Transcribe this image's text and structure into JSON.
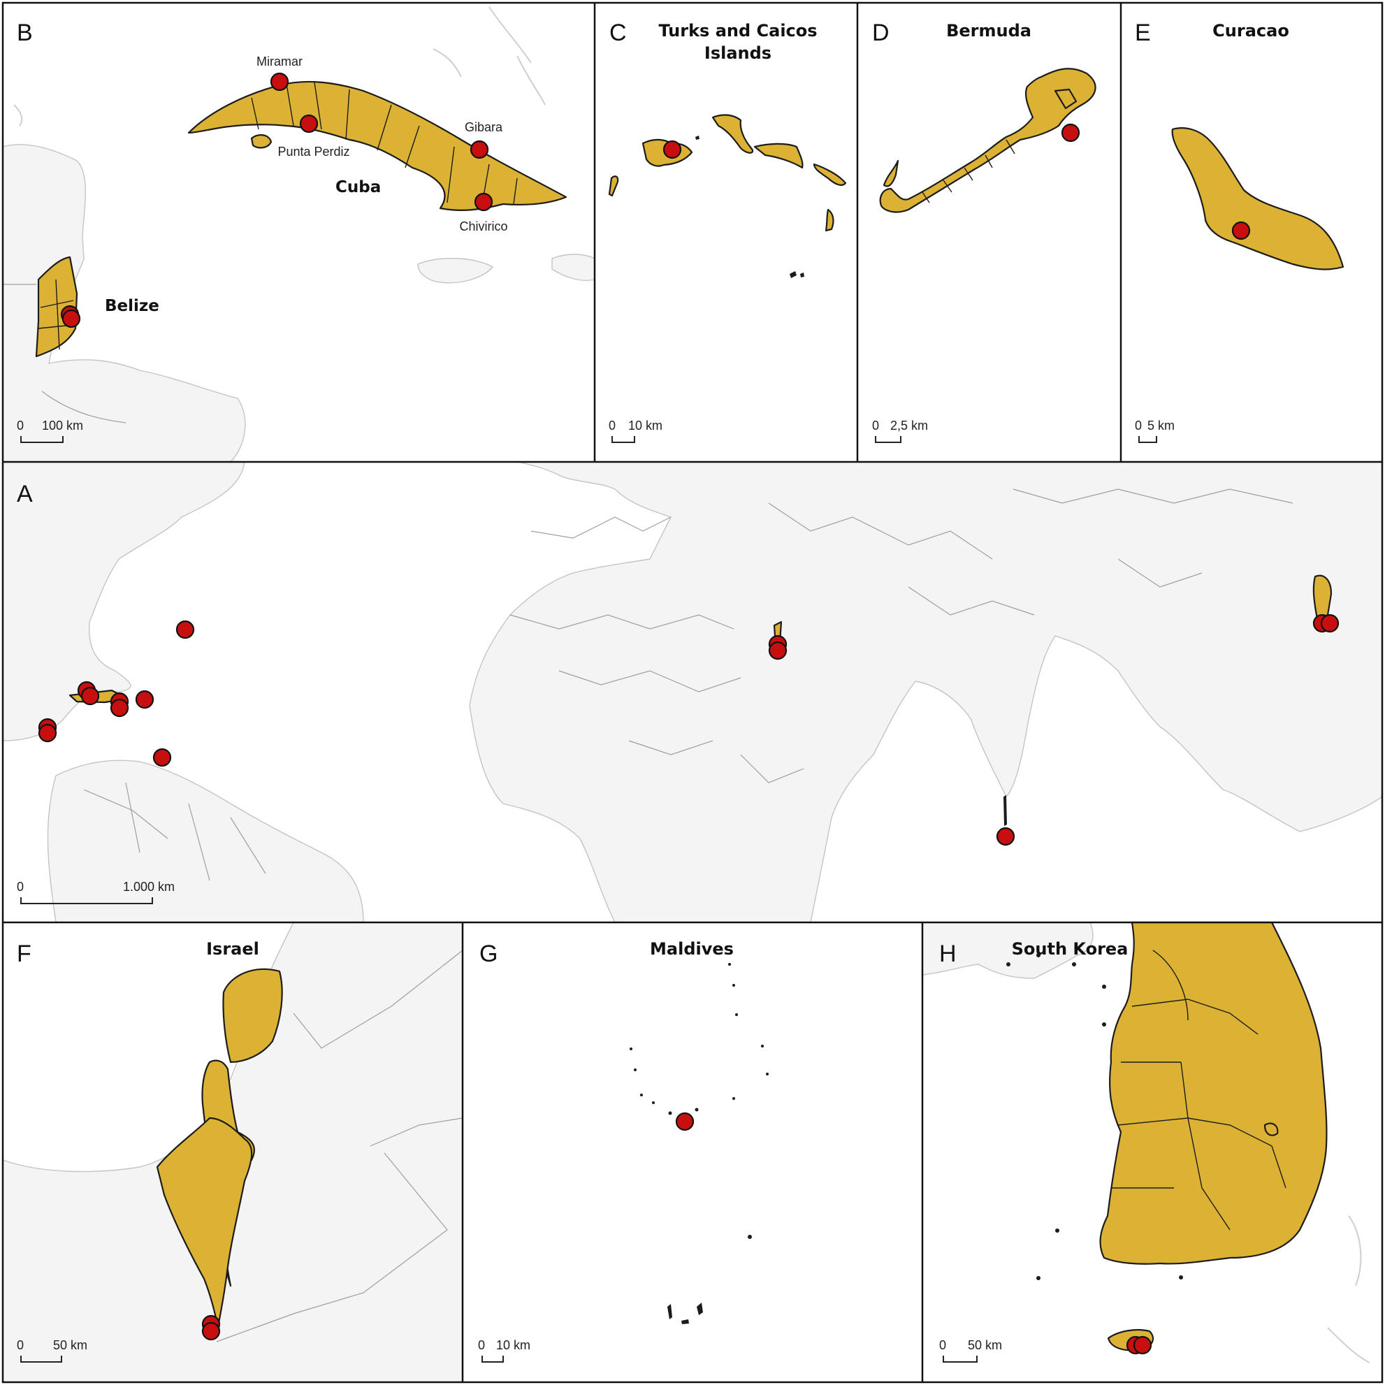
{
  "panels": {
    "A": {
      "letter": "A",
      "scale": {
        "zero": "0",
        "label": "1.000 km"
      }
    },
    "B": {
      "letter": "B",
      "countries": {
        "cuba": "Cuba",
        "belize": "Belize"
      },
      "places": {
        "miramar": "Miramar",
        "punta_perdiz": "Punta Perdiz",
        "gibara": "Gibara",
        "chivirico": "Chivirico"
      },
      "scale": {
        "zero": "0",
        "label": "100 km"
      }
    },
    "C": {
      "letter": "C",
      "title_line1": "Turks and Caicos",
      "title_line2": "Islands",
      "scale": {
        "zero": "0",
        "label": "10 km"
      }
    },
    "D": {
      "letter": "D",
      "title": "Bermuda",
      "scale": {
        "zero": "0",
        "label": "2,5 km"
      }
    },
    "E": {
      "letter": "E",
      "title": "Curacao",
      "scale": {
        "zero": "0",
        "label": "5 km"
      }
    },
    "F": {
      "letter": "F",
      "title": "Israel",
      "scale": {
        "zero": "0",
        "label": "50 km"
      }
    },
    "G": {
      "letter": "G",
      "title": "Maldives",
      "scale": {
        "zero": "0",
        "label": "10 km"
      }
    },
    "H": {
      "letter": "H",
      "title": "South Korea",
      "scale": {
        "zero": "0",
        "label": "50 km"
      }
    }
  },
  "colors": {
    "highlight_land": "#dcb234",
    "marker": "#c80f10",
    "background_land": "#f4f4f4",
    "border": "#111111"
  }
}
